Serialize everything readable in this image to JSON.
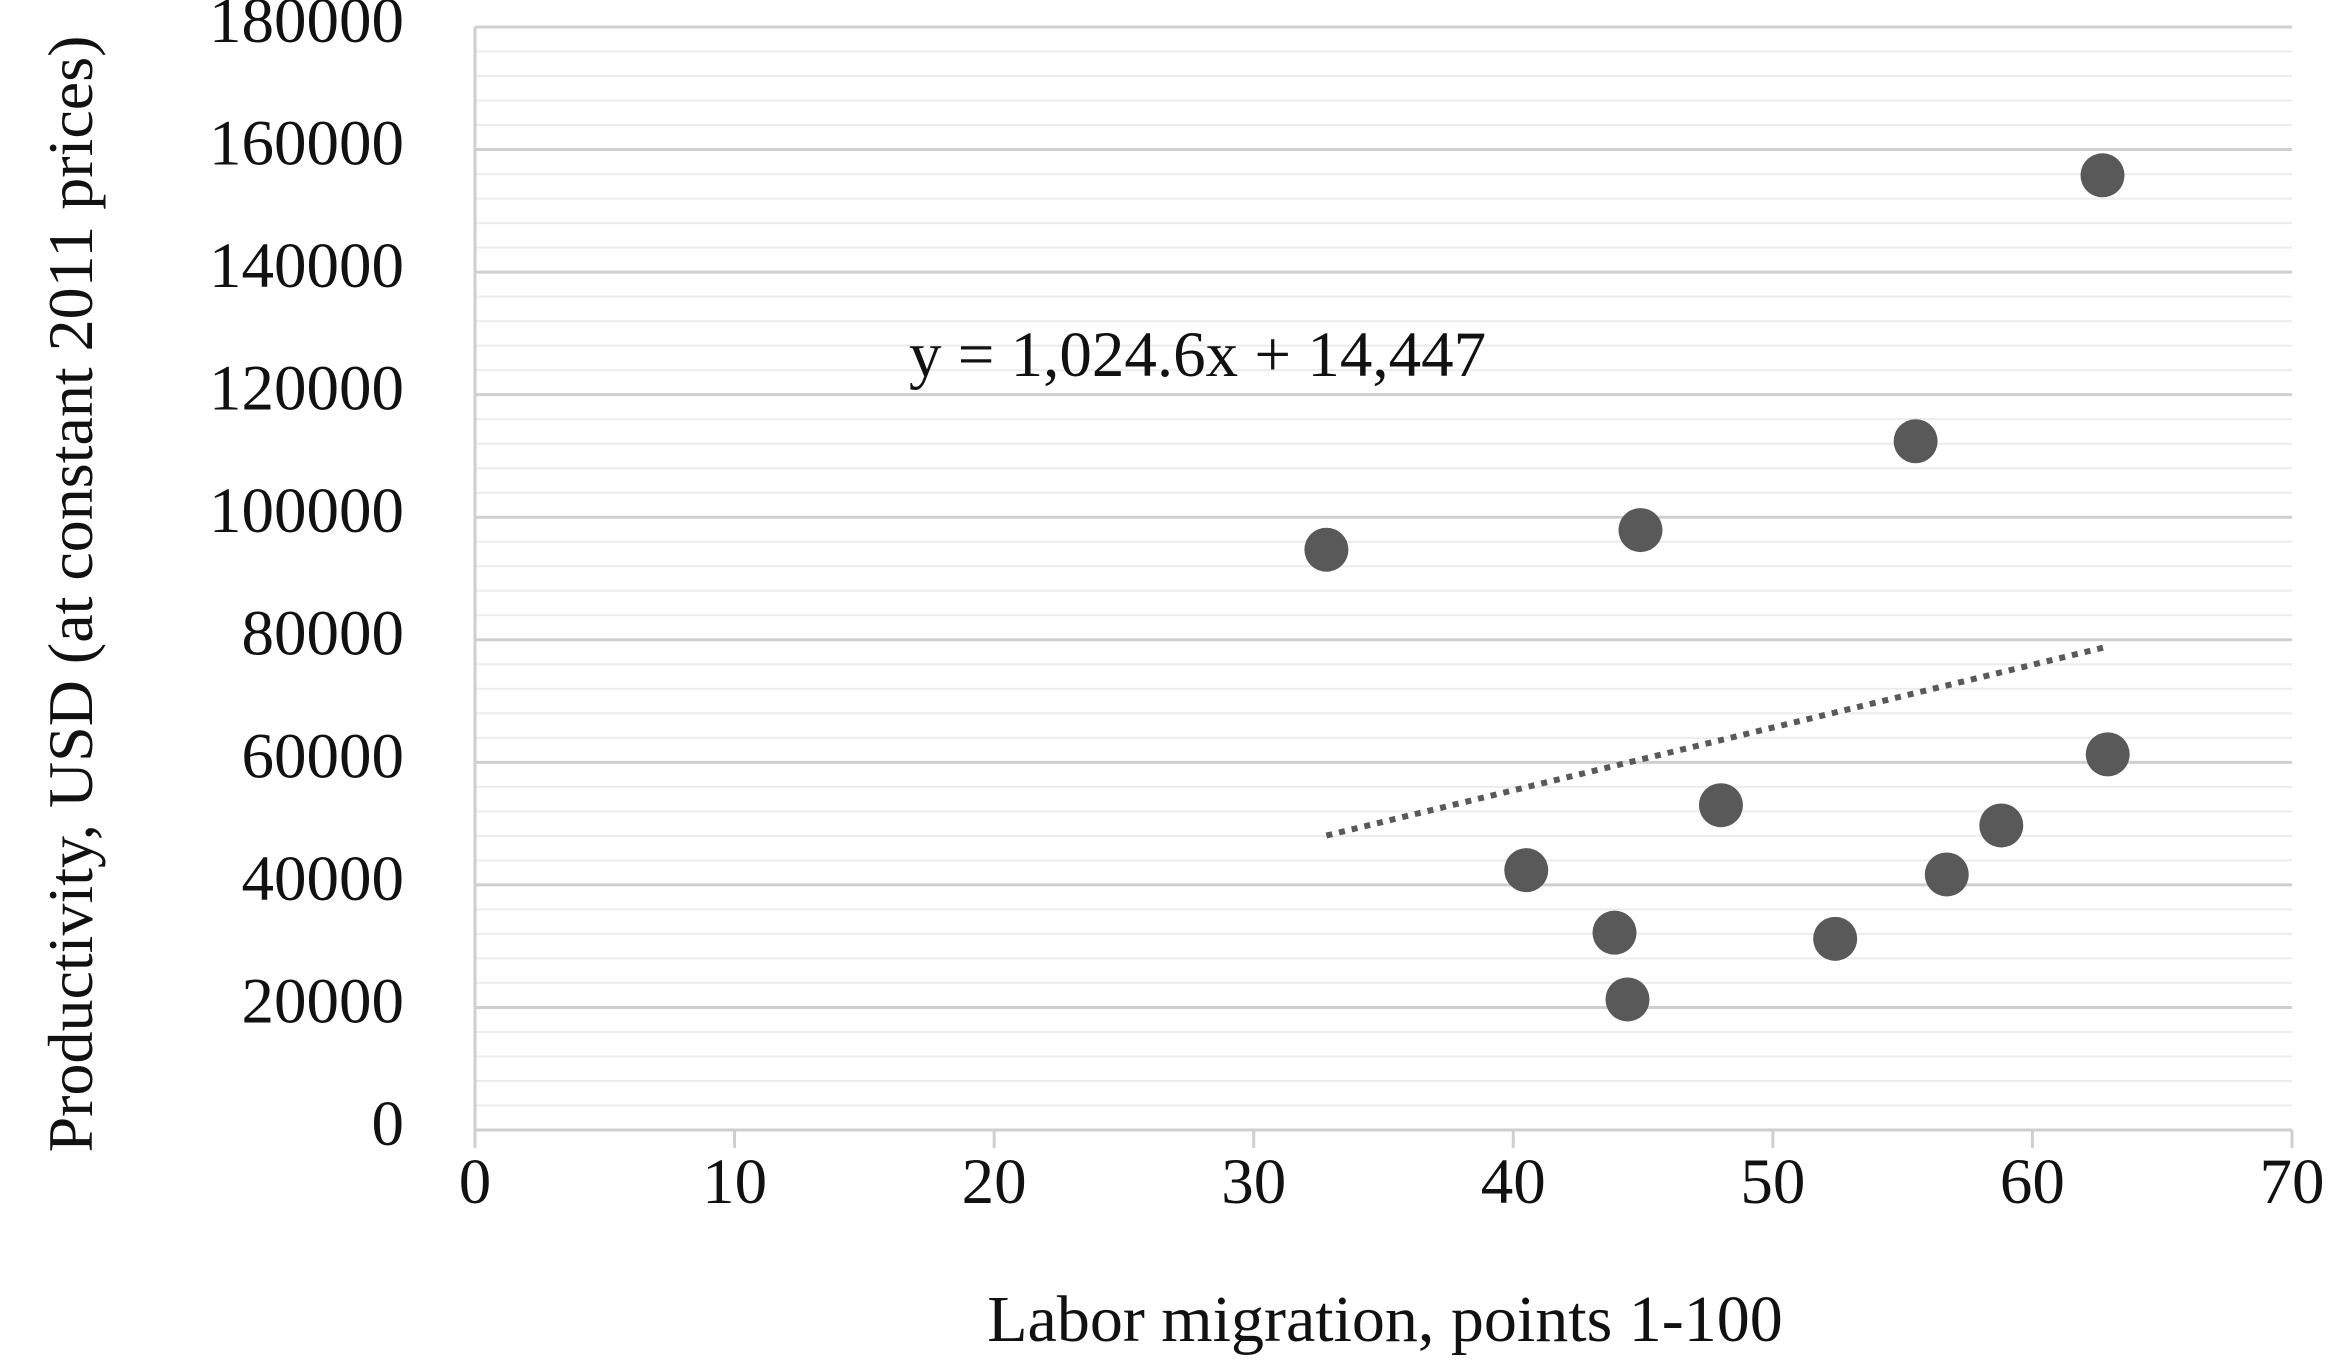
{
  "chart_data": {
    "type": "scatter",
    "x_label": "Labor migration, points 1-100",
    "y_label": "Productivity, USD (at constant 2011 prices)",
    "x": [
      32.8,
      44.9,
      55.5,
      62.7,
      62.9,
      48.0,
      58.8,
      40.5,
      56.7,
      43.9,
      52.4,
      44.4
    ],
    "values": [
      94700,
      97900,
      112400,
      155800,
      61300,
      53000,
      49700,
      42400,
      41700,
      32200,
      31200,
      21300
    ],
    "color": "#595959",
    "xlim": [
      0,
      70
    ],
    "xticks": [
      0,
      10,
      20,
      30,
      40,
      50,
      60,
      70
    ],
    "ylim": [
      0,
      180000
    ],
    "yticks": [
      0,
      20000,
      40000,
      60000,
      80000,
      100000,
      120000,
      140000,
      160000,
      180000
    ],
    "grid": true,
    "trendline": {
      "label": "y = 1,024.6x + 14,447",
      "x": [
        32.8,
        62.9
      ],
      "values": [
        48054,
        78894
      ]
    }
  }
}
